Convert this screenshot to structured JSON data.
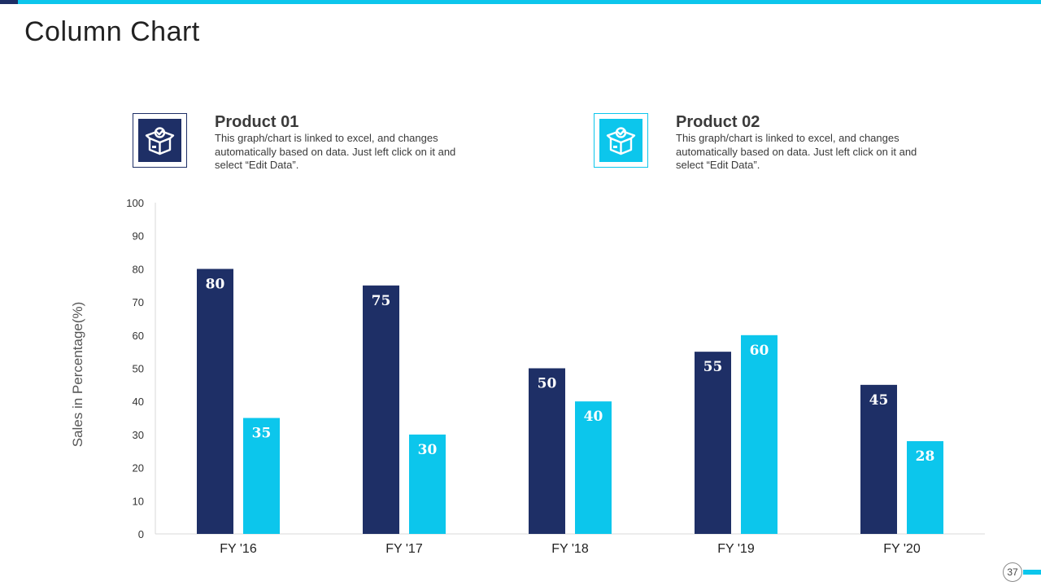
{
  "slide": {
    "title": "Column Chart",
    "page_number": "37"
  },
  "legend": [
    {
      "name": "Product 01",
      "description": "This graph/chart is linked to excel, and changes automatically based on data. Just left click on it and select “Edit Data”.",
      "icon": "box-check-icon",
      "color": "#1e2f66"
    },
    {
      "name": "Product 02",
      "description": "This graph/chart is linked to excel, and changes automatically based on data. Just left click on it and select “Edit Data”.",
      "icon": "box-check-icon",
      "color": "#0cc6ec"
    }
  ],
  "chart_data": {
    "type": "bar",
    "title": "",
    "xlabel": "",
    "ylabel": "Sales in Percentage(%)",
    "ylim": [
      0,
      100
    ],
    "yticks": [
      0,
      10,
      20,
      30,
      40,
      50,
      60,
      70,
      80,
      90,
      100
    ],
    "categories": [
      "FY '16",
      "FY '17",
      "FY '18",
      "FY '19",
      "FY '20"
    ],
    "grid": false,
    "legend": "top",
    "series": [
      {
        "name": "Product 01",
        "color": "#1e2f66",
        "values": [
          80,
          75,
          50,
          55,
          45
        ]
      },
      {
        "name": "Product 02",
        "color": "#0cc6ec",
        "values": [
          35,
          30,
          40,
          60,
          28
        ]
      }
    ]
  }
}
